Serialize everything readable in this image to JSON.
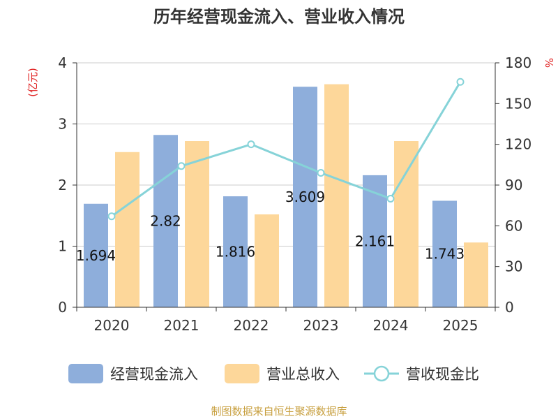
{
  "chart_data": {
    "type": "bar",
    "title": "历年经营现金流入、营业收入情况",
    "categories": [
      "2020",
      "2021",
      "2022",
      "2023",
      "2024",
      "2025"
    ],
    "series": [
      {
        "name": "经营现金流入",
        "type": "bar",
        "axis": "left",
        "color": "#8eaedb",
        "values": [
          1.694,
          2.82,
          1.816,
          3.609,
          2.161,
          1.743
        ]
      },
      {
        "name": "营业总收入",
        "type": "bar",
        "axis": "left",
        "color": "#fdd79a",
        "values": [
          2.54,
          2.72,
          1.52,
          3.65,
          2.72,
          1.06
        ]
      },
      {
        "name": "营收现金比",
        "type": "line",
        "axis": "right",
        "color": "#86d3d8",
        "values": [
          67,
          104,
          120,
          99,
          80,
          166
        ]
      }
    ],
    "data_labels": [
      "1.694",
      "2.82",
      "1.816",
      "3.609",
      "2.161",
      "1.743"
    ],
    "y_left": {
      "unit": "(亿元)",
      "ylim": [
        0,
        4
      ],
      "ticks": [
        "0",
        "1",
        "2",
        "3",
        "4"
      ]
    },
    "y_right": {
      "unit": "%",
      "ylim": [
        0,
        180
      ],
      "ticks": [
        "0",
        "30",
        "60",
        "90",
        "120",
        "150",
        "180"
      ]
    },
    "grid": true,
    "legend_position": "bottom",
    "source": "制图数据来自恒生聚源数据库"
  }
}
